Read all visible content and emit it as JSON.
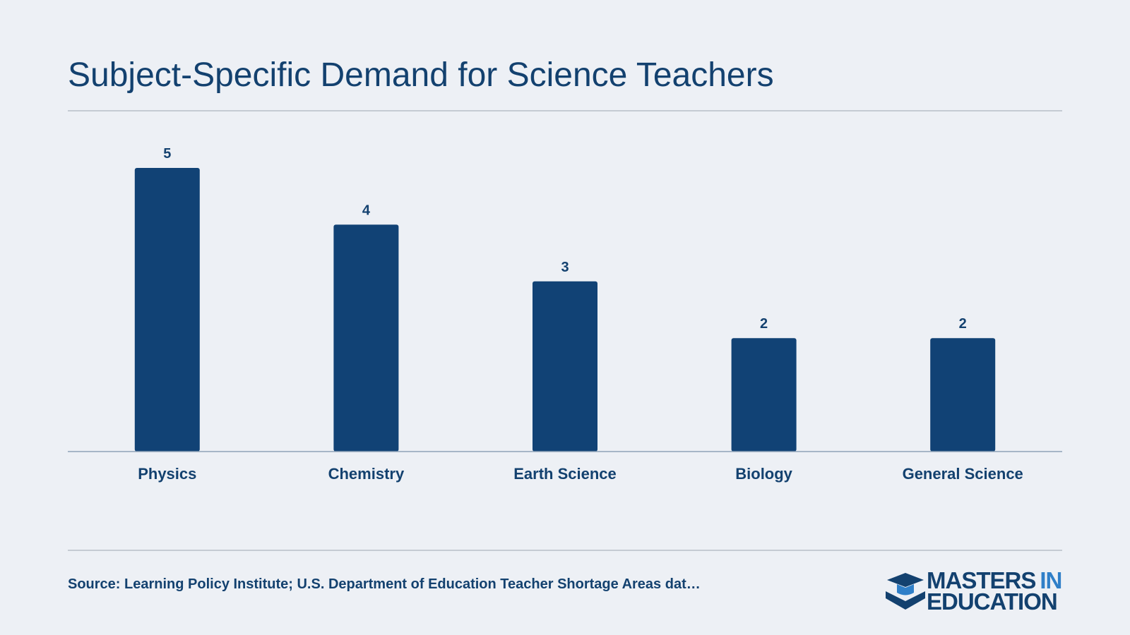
{
  "chart_data": {
    "type": "bar",
    "title": "Subject-Specific Demand for Science Teachers",
    "categories": [
      "Physics",
      "Chemistry",
      "Earth Science",
      "Biology",
      "General Science"
    ],
    "values": [
      5,
      4,
      3,
      2,
      2
    ],
    "color": "#114275",
    "source": "Source: Learning Policy Institute; U.S. Department of Education Teacher Shortage Areas dat…"
  },
  "logo": {
    "line1": "MASTERS",
    "line1_accent": "IN",
    "line2": "EDUCATION"
  }
}
